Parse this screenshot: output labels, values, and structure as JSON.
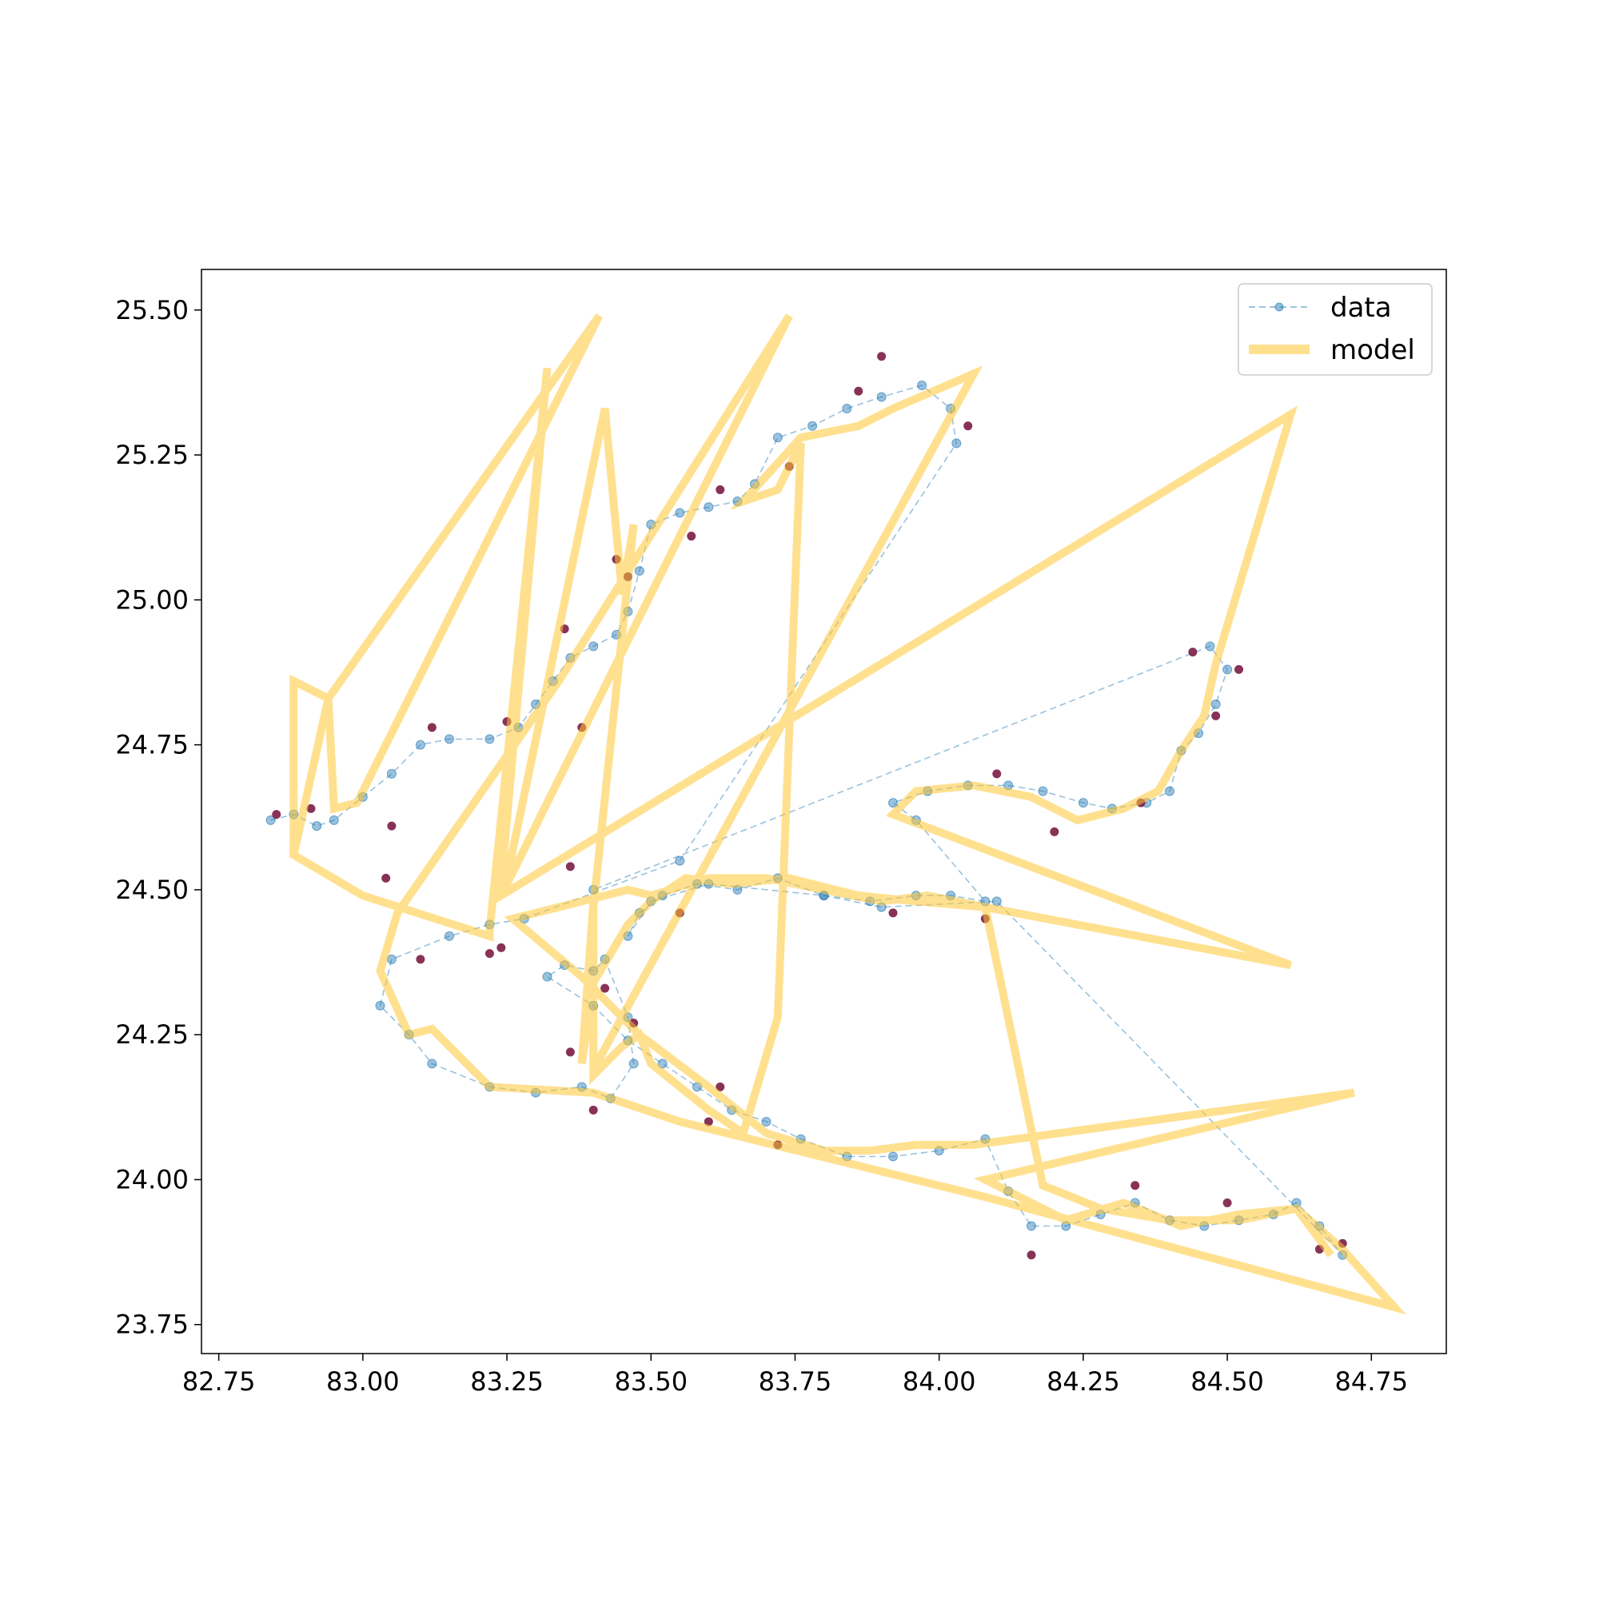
{
  "chart_data": {
    "type": "line",
    "title": "",
    "xlabel": "",
    "ylabel": "",
    "xlim": [
      82.72,
      84.88
    ],
    "ylim": [
      23.7,
      25.57
    ],
    "x_ticks": [
      "82.75",
      "83.00",
      "83.25",
      "83.50",
      "83.75",
      "84.00",
      "84.25",
      "84.50",
      "84.75"
    ],
    "y_ticks": [
      "23.75",
      "24.00",
      "24.25",
      "24.50",
      "24.75",
      "25.00",
      "25.25",
      "25.50"
    ],
    "grid": false,
    "legend_position": "top-right",
    "colors": {
      "data": "#1f77b4",
      "outlier": "#7b1c45",
      "model": "#ffc733"
    },
    "series": [
      {
        "name": "data",
        "style": "dashed-line-with-markers",
        "x": [
          82.84,
          82.88,
          82.92,
          82.95,
          83.0,
          83.05,
          83.1,
          83.15,
          83.22,
          83.27,
          83.3,
          83.33,
          83.36,
          83.4,
          83.44,
          83.46,
          83.48,
          83.5,
          83.55,
          83.6,
          83.65,
          83.68,
          83.72,
          83.78,
          83.84,
          83.9,
          83.97,
          84.02,
          84.03,
          83.55,
          83.28,
          83.22,
          83.15,
          83.05,
          83.03,
          83.08,
          83.12,
          83.22,
          83.3,
          83.38,
          83.43,
          83.47,
          83.46,
          83.42,
          83.4,
          83.35,
          83.32,
          83.4,
          83.46,
          83.52,
          83.58,
          83.64,
          83.7,
          83.76,
          83.84,
          83.92,
          84.0,
          84.08,
          84.12,
          84.16,
          84.22,
          84.28,
          84.34,
          84.4,
          84.46,
          84.52,
          84.58,
          84.62,
          84.66,
          84.7,
          84.1,
          83.9,
          83.8,
          83.6,
          83.5,
          83.46,
          83.48,
          83.52,
          83.58,
          83.65,
          83.72,
          83.8,
          83.88,
          83.96,
          84.02,
          84.08,
          83.96,
          83.92,
          83.98,
          84.05,
          84.12,
          84.18,
          84.25,
          84.3,
          84.36,
          84.4,
          84.42,
          84.45,
          84.48,
          84.5,
          84.47,
          83.4
        ],
        "y": [
          24.62,
          24.63,
          24.61,
          24.62,
          24.66,
          24.7,
          24.75,
          24.76,
          24.76,
          24.78,
          24.82,
          24.86,
          24.9,
          24.92,
          24.94,
          24.98,
          25.05,
          25.13,
          25.15,
          25.16,
          25.17,
          25.2,
          25.28,
          25.3,
          25.33,
          25.35,
          25.37,
          25.33,
          25.27,
          24.55,
          24.45,
          24.44,
          24.42,
          24.38,
          24.3,
          24.25,
          24.2,
          24.16,
          24.15,
          24.16,
          24.14,
          24.2,
          24.28,
          24.38,
          24.36,
          24.37,
          24.35,
          24.3,
          24.24,
          24.2,
          24.16,
          24.12,
          24.1,
          24.07,
          24.04,
          24.04,
          24.05,
          24.07,
          23.98,
          23.92,
          23.92,
          23.94,
          23.96,
          23.93,
          23.92,
          23.93,
          23.94,
          23.96,
          23.92,
          23.87,
          24.48,
          24.47,
          24.49,
          24.51,
          24.48,
          24.42,
          24.46,
          24.49,
          24.51,
          24.5,
          24.52,
          24.49,
          24.48,
          24.49,
          24.49,
          24.48,
          24.62,
          24.65,
          24.67,
          24.68,
          24.68,
          24.67,
          24.65,
          24.64,
          24.65,
          24.67,
          24.74,
          24.77,
          24.82,
          24.88,
          24.92,
          24.5
        ]
      },
      {
        "name": "",
        "style": "outlier-markers",
        "x": [
          82.85,
          82.91,
          83.05,
          83.12,
          83.25,
          83.35,
          83.38,
          83.44,
          83.46,
          83.57,
          83.62,
          83.74,
          83.86,
          83.9,
          84.05,
          84.1,
          84.2,
          84.35,
          84.44,
          84.52,
          84.48,
          83.92,
          84.08,
          83.55,
          83.42,
          83.47,
          83.36,
          83.4,
          83.6,
          83.72,
          84.16,
          84.34,
          84.5,
          84.66,
          84.7,
          83.1,
          83.22,
          83.04,
          83.24,
          83.36,
          83.62
        ],
        "y": [
          24.63,
          24.64,
          24.61,
          24.78,
          24.79,
          24.95,
          24.78,
          25.07,
          25.04,
          25.11,
          25.19,
          25.23,
          25.36,
          25.42,
          25.3,
          24.7,
          24.6,
          24.65,
          24.91,
          24.88,
          24.8,
          24.46,
          24.45,
          24.46,
          24.33,
          24.27,
          24.22,
          24.12,
          24.1,
          24.06,
          23.87,
          23.99,
          23.96,
          23.88,
          23.89,
          24.38,
          24.39,
          24.52,
          24.4,
          24.54,
          24.16
        ]
      },
      {
        "name": "model",
        "style": "thick-line",
        "x": [
          82.88,
          82.88,
          82.94,
          82.95,
          82.99,
          83.41,
          82.94,
          82.88,
          83.0,
          83.22,
          83.22,
          83.32,
          83.24,
          83.25,
          83.42,
          83.45,
          83.47,
          83.4,
          83.4,
          83.42,
          83.45,
          83.48,
          83.5,
          83.55,
          83.6,
          83.66,
          83.72,
          83.76,
          83.72,
          83.66,
          83.76,
          83.86,
          83.92,
          84.06,
          83.4,
          83.4,
          83.38,
          83.4,
          83.46,
          83.5,
          83.56,
          83.64,
          83.74,
          83.86,
          83.96,
          84.08,
          84.18,
          84.28,
          84.4,
          84.52,
          84.62,
          84.7,
          84.79,
          84.08,
          83.55,
          83.4,
          83.22,
          83.12,
          83.08,
          83.03,
          83.06,
          83.34,
          83.74,
          83.24,
          84.61,
          84.48,
          84.46,
          84.42,
          84.38,
          84.32,
          84.24,
          84.16,
          84.06,
          83.96,
          83.92,
          84.61,
          84.08,
          83.98,
          83.9,
          83.8,
          83.7,
          83.6,
          83.5,
          83.46,
          83.26,
          83.38,
          83.48,
          83.6,
          83.7,
          83.8,
          83.88,
          83.96,
          84.06,
          84.72,
          84.08,
          84.14,
          84.22,
          84.32,
          84.42,
          84.52,
          84.62,
          84.68
        ],
        "y": [
          24.56,
          24.86,
          24.83,
          24.64,
          24.65,
          25.49,
          24.83,
          24.56,
          24.49,
          24.42,
          24.43,
          25.4,
          24.51,
          24.52,
          25.33,
          25.01,
          25.13,
          24.47,
          24.18,
          24.2,
          24.23,
          24.25,
          24.2,
          24.16,
          24.12,
          24.08,
          24.28,
          25.27,
          25.19,
          25.17,
          25.28,
          25.3,
          25.33,
          25.39,
          24.19,
          24.48,
          24.2,
          24.34,
          24.44,
          24.48,
          24.52,
          24.51,
          24.52,
          24.49,
          24.48,
          24.47,
          23.99,
          23.95,
          23.93,
          23.93,
          23.95,
          23.88,
          23.78,
          23.97,
          24.1,
          24.15,
          24.16,
          24.26,
          24.25,
          24.36,
          24.46,
          24.86,
          25.49,
          24.49,
          25.32,
          24.89,
          24.8,
          24.74,
          24.67,
          24.64,
          24.62,
          24.66,
          24.68,
          24.67,
          24.63,
          24.37,
          24.47,
          24.49,
          24.48,
          24.5,
          24.52,
          24.52,
          24.49,
          24.5,
          24.45,
          24.35,
          24.25,
          24.16,
          24.08,
          24.05,
          24.05,
          24.06,
          24.06,
          24.15,
          24.0,
          23.97,
          23.93,
          23.96,
          23.92,
          23.94,
          23.95,
          23.87
        ]
      }
    ],
    "legend": {
      "entries": [
        "data",
        "model"
      ]
    }
  }
}
